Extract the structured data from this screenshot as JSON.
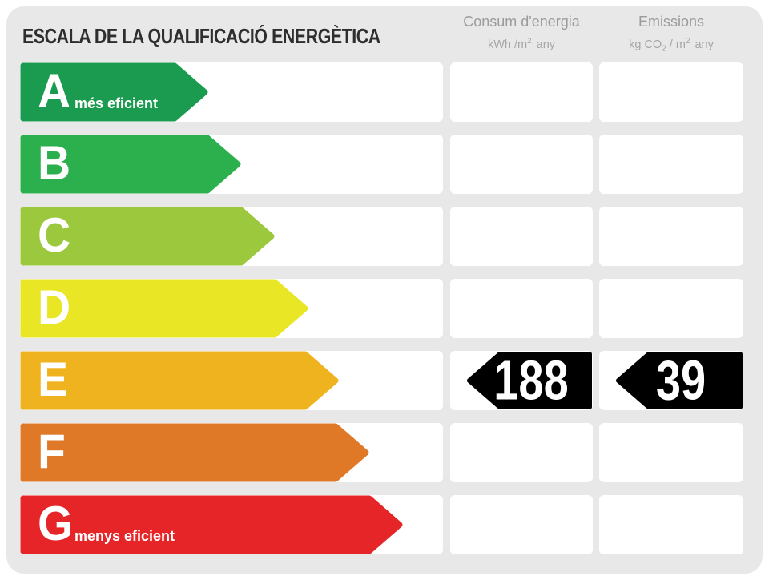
{
  "title": "ESCALA DE LA QUALIFICACIÓ ENERGÈTICA",
  "theme": {
    "card_bg": "#e8e8e8",
    "cell_bg": "#ffffff",
    "title_text": "#2e2e2e",
    "header_text": "#9b9b9b",
    "badge_color": "#000000"
  },
  "columns": {
    "consumption": {
      "label": "Consum d'energia",
      "unit_main": "kWh /m",
      "unit_sup": "2",
      "unit_tail": "any"
    },
    "emissions": {
      "label": "Emissions",
      "unit_main": "kg CO",
      "unit_sub": "2",
      "unit_mid": " / m",
      "unit_sup": "2",
      "unit_tail": "any"
    }
  },
  "ratings": [
    {
      "letter": "A",
      "label": "més eficient",
      "color": "#1b9b4f",
      "arrow_length": 237
    },
    {
      "letter": "B",
      "label": "",
      "color": "#2bb04d",
      "arrow_length": 278
    },
    {
      "letter": "C",
      "label": "",
      "color": "#9cc83d",
      "arrow_length": 320
    },
    {
      "letter": "D",
      "label": "",
      "color": "#e9e626",
      "arrow_length": 362
    },
    {
      "letter": "E",
      "label": "",
      "color": "#efb31f",
      "arrow_length": 400
    },
    {
      "letter": "F",
      "label": "",
      "color": "#e07927",
      "arrow_length": 438
    },
    {
      "letter": "G",
      "label": "menys eficient",
      "color": "#e52528",
      "arrow_length": 480
    }
  ],
  "result": {
    "rating": "E",
    "consumption_value": "188",
    "emissions_value": "39"
  },
  "chart_data": {
    "type": "bar",
    "orientation": "horizontal",
    "title": "ESCALA DE LA QUALIFICACIÓ ENERGÈTICA",
    "categories": [
      "A",
      "B",
      "C",
      "D",
      "E",
      "F",
      "G"
    ],
    "category_annotations": {
      "A": "més eficient",
      "G": "menys eficient"
    },
    "bar_colors": [
      "#1b9b4f",
      "#2bb04d",
      "#9cc83d",
      "#e9e626",
      "#efb31f",
      "#e07927",
      "#e52528"
    ],
    "relative_bar_lengths": [
      237,
      278,
      320,
      362,
      400,
      438,
      480
    ],
    "columns": [
      {
        "label": "Consum d'energia",
        "unit": "kWh/m² any"
      },
      {
        "label": "Emissions",
        "unit": "kg CO₂/m² any"
      }
    ],
    "result": {
      "class": "E",
      "consum_energia": 188,
      "emissions": 39
    },
    "legend": "none",
    "grid": false
  }
}
